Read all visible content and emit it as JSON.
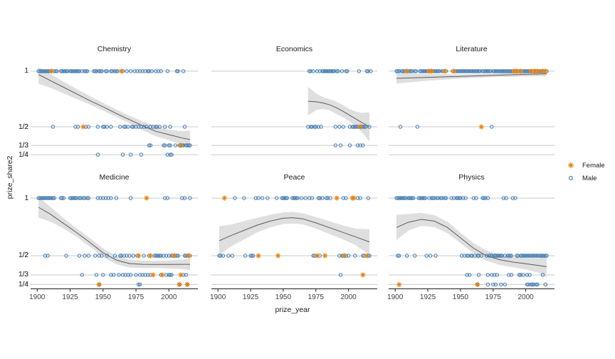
{
  "axes": {
    "x_label": "prize_year",
    "y_label": "prize_share2",
    "x_ticks": [
      1900,
      1925,
      1950,
      1975,
      2000
    ],
    "y_ticks": [
      {
        "label": "1",
        "value": 1.0
      },
      {
        "label": "1/2",
        "value": 0.5
      },
      {
        "label": "1/3",
        "value": 0.33333
      },
      {
        "label": "1/4",
        "value": 0.25
      }
    ]
  },
  "legend": {
    "items": [
      {
        "label": "Female",
        "marker": "asterisk-icon",
        "color": "#E8820D"
      },
      {
        "label": "Male",
        "marker": "open-circle-icon",
        "color": "#3B77B0"
      }
    ]
  },
  "style": {
    "female_color": "#E8820D",
    "male_color": "#3B77B0",
    "gridline_color": "#C9C9C9",
    "band_color": "#DFDFDF",
    "trend_color": "#5A5A5A",
    "axis_color": "#1a1a1a"
  },
  "chart_data": {
    "type": "scatter",
    "title": "",
    "xlabel": "prize_year",
    "ylabel": "prize_share2",
    "x_range": [
      1895,
      2022
    ],
    "y_range": [
      0.2125,
      1.0375
    ],
    "grid": "horizontal-only",
    "legend_position": "right",
    "facets": [
      {
        "name": "Chemistry",
        "female": {
          "1": [
            1911,
            1964
          ],
          "1/2": [
            1935
          ],
          "1/3": [
            2009
          ],
          "1/4": []
        },
        "male": {
          "1": [
            1901,
            1902,
            1903,
            1904,
            1905,
            1906,
            1907,
            1908,
            1909,
            1910,
            1913,
            1914,
            1915,
            1918,
            1919,
            1920,
            1921,
            1922,
            1923,
            1925,
            1926,
            1927,
            1928,
            1929,
            1930,
            1931,
            1932,
            1934,
            1936,
            1937,
            1938,
            1943,
            1944,
            1945,
            1947,
            1948,
            1949,
            1952,
            1953,
            1956,
            1957,
            1959,
            1960,
            1961,
            1965,
            1968,
            1971,
            1974,
            1976,
            1978,
            1980,
            1982,
            1984,
            1985,
            1987,
            1990,
            1992,
            1994,
            1999,
            2006,
            2007,
            2011
          ],
          "1/2": [
            1912,
            1929,
            1931,
            1937,
            1939,
            1946,
            1950,
            1951,
            1953,
            1956,
            1963,
            1966,
            1967,
            1969,
            1972,
            1973,
            1975,
            1977,
            1979,
            1981,
            1983,
            1986,
            1988,
            1990,
            1991,
            1993,
            1997,
            2001,
            2012
          ],
          "1/3": [
            1985,
            1986,
            1996,
            1997,
            2000,
            2001,
            2005,
            2008,
            2009,
            2010,
            2011,
            2013,
            2014,
            2015,
            2016
          ],
          "1/4": [
            1946,
            1965,
            1971,
            1979,
            1999,
            2001,
            2002
          ]
        },
        "trend": {
          "x": [
            1901,
            1910,
            1920,
            1930,
            1940,
            1950,
            1960,
            1970,
            1980,
            1990,
            2000,
            2010,
            2016
          ],
          "y": [
            0.97,
            0.915,
            0.855,
            0.795,
            0.735,
            0.68,
            0.62,
            0.565,
            0.51,
            0.46,
            0.43,
            0.4,
            0.385
          ],
          "hi": [
            1.037,
            0.975,
            0.905,
            0.84,
            0.775,
            0.715,
            0.655,
            0.6,
            0.55,
            0.505,
            0.475,
            0.46,
            0.465
          ],
          "lo": [
            0.885,
            0.85,
            0.8,
            0.75,
            0.7,
            0.645,
            0.59,
            0.53,
            0.47,
            0.415,
            0.38,
            0.34,
            0.305
          ]
        }
      },
      {
        "name": "Economics",
        "female": {
          "1": [],
          "1/2": [
            2009
          ],
          "1/3": [],
          "1/4": []
        },
        "male": {
          "1": [
            1970,
            1971,
            1973,
            1976,
            1978,
            1980,
            1981,
            1982,
            1983,
            1984,
            1985,
            1986,
            1987,
            1988,
            1989,
            1991,
            1992,
            1995,
            1998,
            1999,
            2008,
            2014,
            2015,
            2017
          ],
          "1/2": [
            1969,
            1971,
            1972,
            1974,
            1975,
            1977,
            1979,
            1990,
            1993,
            1996,
            2001,
            2003,
            2004,
            2005,
            2006,
            2007,
            2009,
            2010,
            2011,
            2012,
            2013,
            2016
          ],
          "1/3": [
            1990,
            1994,
            2001,
            2007,
            2009,
            2011
          ],
          "1/4": []
        },
        "trend": {
          "x": [
            1969,
            1975,
            1980,
            1985,
            1990,
            1995,
            2000,
            2005,
            2010,
            2016
          ],
          "y": [
            0.73,
            0.725,
            0.715,
            0.7,
            0.675,
            0.645,
            0.61,
            0.575,
            0.54,
            0.5
          ],
          "hi": [
            0.86,
            0.8,
            0.77,
            0.75,
            0.73,
            0.7,
            0.665,
            0.64,
            0.625,
            0.63
          ],
          "lo": [
            0.6,
            0.65,
            0.66,
            0.65,
            0.62,
            0.59,
            0.555,
            0.51,
            0.455,
            0.37
          ]
        }
      },
      {
        "name": "Literature",
        "female": {
          "1": [
            1909,
            1926,
            1928,
            1938,
            1945,
            1991,
            1993,
            1996,
            2004,
            2007,
            2009,
            2013,
            2015
          ],
          "1/2": [
            1966
          ],
          "1/3": [],
          "1/4": []
        },
        "male": {
          "1": [
            1901,
            1902,
            1903,
            1905,
            1906,
            1907,
            1908,
            1910,
            1911,
            1912,
            1913,
            1915,
            1916,
            1919,
            1920,
            1921,
            1922,
            1923,
            1924,
            1925,
            1927,
            1929,
            1930,
            1931,
            1932,
            1933,
            1934,
            1936,
            1937,
            1939,
            1944,
            1946,
            1947,
            1948,
            1949,
            1950,
            1951,
            1952,
            1953,
            1954,
            1955,
            1956,
            1957,
            1958,
            1959,
            1960,
            1961,
            1962,
            1963,
            1964,
            1965,
            1967,
            1968,
            1969,
            1970,
            1971,
            1972,
            1973,
            1975,
            1976,
            1977,
            1978,
            1979,
            1980,
            1981,
            1982,
            1983,
            1984,
            1985,
            1986,
            1987,
            1988,
            1989,
            1990,
            1992,
            1994,
            1995,
            1997,
            1998,
            1999,
            2000,
            2001,
            2002,
            2003,
            2005,
            2006,
            2008,
            2010,
            2011,
            2012,
            2014,
            2016
          ],
          "1/2": [
            1904,
            1917,
            1974
          ],
          "1/3": [],
          "1/4": []
        },
        "trend": {
          "x": [
            1901,
            1925,
            1950,
            1975,
            2000,
            2016
          ],
          "y": [
            0.935,
            0.944,
            0.953,
            0.962,
            0.971,
            0.976
          ],
          "hi": [
            0.982,
            0.974,
            0.972,
            0.978,
            0.99,
            0.998
          ],
          "lo": [
            0.888,
            0.914,
            0.934,
            0.946,
            0.952,
            0.954
          ]
        }
      },
      {
        "name": "Medicine",
        "female": {
          "1": [
            1983
          ],
          "1/2": [
            1977,
            1986,
            2004,
            2015
          ],
          "1/3": [
            1988,
            1995,
            2009
          ],
          "1/4": [
            1947,
            2008,
            2014
          ]
        },
        "male": {
          "1": [
            1901,
            1902,
            1903,
            1904,
            1905,
            1906,
            1907,
            1908,
            1909,
            1910,
            1911,
            1912,
            1913,
            1918,
            1919,
            1920,
            1925,
            1926,
            1927,
            1928,
            1929,
            1930,
            1932,
            1933,
            1935,
            1936,
            1938,
            1939,
            1946,
            1948,
            1950,
            1952,
            1954,
            1956,
            1960,
            1971,
            1997,
            1999,
            2010,
            2012,
            2016
          ],
          "1/2": [
            1906,
            1908,
            1922,
            1932,
            1936,
            1939,
            1944,
            1947,
            1949,
            1953,
            1959,
            1963,
            1964,
            1966,
            1968,
            1970,
            1973,
            1976,
            1981,
            1985,
            1989,
            1990,
            1991,
            1992,
            1993,
            1994,
            1996,
            1998,
            2000,
            2002,
            2003,
            2005,
            2006,
            2007,
            2012,
            2013,
            2014,
            2016
          ],
          "1/3": [
            1934,
            1945,
            1950,
            1956,
            1958,
            1962,
            1965,
            1967,
            1969,
            1971,
            1975,
            1978,
            1980,
            1982,
            1984,
            1986,
            1994,
            1998,
            2000,
            2001,
            2002,
            2011,
            2013
          ],
          "1/4": [
            1947,
            1977,
            1978,
            2008,
            2014
          ]
        },
        "trend": {
          "x": [
            1901,
            1910,
            1920,
            1930,
            1940,
            1950,
            1960,
            1970,
            1980,
            1990,
            2000,
            2010,
            2016
          ],
          "y": [
            0.92,
            0.86,
            0.78,
            0.7,
            0.615,
            0.525,
            0.462,
            0.432,
            0.425,
            0.424,
            0.424,
            0.425,
            0.425
          ],
          "hi": [
            1.01,
            0.925,
            0.825,
            0.738,
            0.653,
            0.563,
            0.498,
            0.466,
            0.457,
            0.455,
            0.458,
            0.465,
            0.475
          ],
          "lo": [
            0.83,
            0.795,
            0.735,
            0.662,
            0.577,
            0.487,
            0.426,
            0.398,
            0.393,
            0.393,
            0.39,
            0.385,
            0.375
          ]
        }
      },
      {
        "name": "Peace",
        "female": {
          "1": [
            1905,
            1991,
            2003,
            2004
          ],
          "1/2": [
            1931,
            1946,
            1976,
            1982,
            1997,
            2014
          ],
          "1/3": [
            2011
          ],
          "1/4": []
        },
        "male": {
          "1": [
            1913,
            1920,
            1929,
            1931,
            1934,
            1938,
            1945,
            1949,
            1950,
            1951,
            1952,
            1953,
            1957,
            1958,
            1959,
            1960,
            1961,
            1964,
            1967,
            1970,
            1972,
            1977,
            1978,
            1980,
            1983,
            1984,
            1986,
            1996,
            1998,
            2007,
            2009,
            2015
          ],
          "1/2": [
            1901,
            1902,
            1904,
            1908,
            1911,
            1921,
            1925,
            1926,
            1927,
            1973,
            1974,
            1978,
            1993,
            1995,
            1996,
            1998,
            2000,
            2005,
            2011,
            2012,
            2015,
            2016
          ],
          "1/3": [
            1994
          ],
          "1/4": []
        },
        "trend": {
          "x": [
            1901,
            1910,
            1920,
            1930,
            1940,
            1950,
            1957,
            1965,
            1975,
            1985,
            1995,
            2005,
            2016
          ],
          "y": [
            0.63,
            0.675,
            0.72,
            0.765,
            0.8,
            0.825,
            0.83,
            0.82,
            0.785,
            0.745,
            0.705,
            0.665,
            0.62
          ],
          "hi": [
            0.755,
            0.77,
            0.8,
            0.828,
            0.855,
            0.875,
            0.88,
            0.868,
            0.835,
            0.8,
            0.765,
            0.735,
            0.73
          ],
          "lo": [
            0.505,
            0.58,
            0.64,
            0.702,
            0.745,
            0.775,
            0.78,
            0.772,
            0.735,
            0.69,
            0.645,
            0.595,
            0.51
          ]
        }
      },
      {
        "name": "Physics",
        "female": {
          "1": [],
          "1/2": [],
          "1/3": [],
          "1/4": [
            1903,
            1963
          ]
        },
        "male": {
          "1": [
            1901,
            1902,
            1903,
            1904,
            1905,
            1906,
            1907,
            1908,
            1910,
            1911,
            1912,
            1913,
            1914,
            1918,
            1919,
            1920,
            1921,
            1922,
            1923,
            1926,
            1928,
            1929,
            1930,
            1932,
            1933,
            1935,
            1936,
            1938,
            1939,
            1943,
            1945,
            1947,
            1948,
            1949,
            1950,
            1952,
            1954,
            1960,
            1962,
            1967,
            1968,
            1969,
            1971,
            1983,
            1985,
            1990,
            1992
          ],
          "1/2": [
            1902,
            1903,
            1909,
            1915,
            1924,
            1927,
            1931,
            1951,
            1953,
            1955,
            1956,
            1958,
            1959,
            1961,
            1963,
            1964,
            1966,
            1970,
            1972,
            1973,
            1974,
            1976,
            1977,
            1978,
            1979,
            1980,
            1981,
            1982,
            1984,
            1986,
            1987,
            1988,
            1989,
            1993,
            1994,
            1996,
            1997,
            1998,
            1999,
            2000,
            2001,
            2002,
            2003,
            2004,
            2005,
            2006,
            2007,
            2008,
            2009,
            2010,
            2011,
            2012,
            2013,
            2014,
            2015,
            2016
          ],
          "1/3": [
            1955,
            1957,
            1964,
            1971,
            1974,
            1976,
            1978,
            1987,
            1989,
            1995,
            1996,
            1998,
            2001,
            2003,
            2013
          ],
          "1/4": [
            1963,
            1971,
            1975,
            1977,
            1981,
            1984,
            2001,
            2002,
            2004,
            2005,
            2006,
            2008,
            2009,
            2015
          ]
        },
        "trend": {
          "x": [
            1901,
            1910,
            1920,
            1930,
            1940,
            1950,
            1960,
            1970,
            1980,
            1990,
            2000,
            2010,
            2016
          ],
          "y": [
            0.745,
            0.79,
            0.815,
            0.8,
            0.745,
            0.655,
            0.565,
            0.5,
            0.465,
            0.445,
            0.43,
            0.415,
            0.405
          ],
          "hi": [
            0.855,
            0.862,
            0.872,
            0.852,
            0.795,
            0.7,
            0.61,
            0.545,
            0.51,
            0.49,
            0.48,
            0.478,
            0.5
          ],
          "lo": [
            0.635,
            0.718,
            0.758,
            0.748,
            0.695,
            0.61,
            0.52,
            0.455,
            0.42,
            0.4,
            0.38,
            0.352,
            0.31
          ]
        }
      }
    ]
  }
}
